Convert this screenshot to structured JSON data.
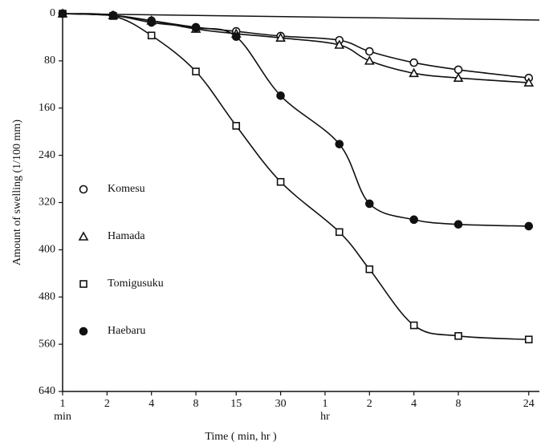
{
  "chart_data": {
    "type": "line",
    "x_label": "Time ( min, hr )",
    "y_label": "Amount of swelling (1/100 mm)",
    "annotations": [
      "min",
      "hr"
    ],
    "x": [
      1,
      2.2,
      4,
      8,
      15,
      30,
      75,
      120,
      240,
      480,
      1440
    ],
    "xlim": [
      1,
      1700
    ],
    "xlog": true,
    "xticks": [
      1,
      2,
      4,
      8,
      15,
      30,
      {
        "value": 60,
        "label": "1"
      },
      {
        "value": 120,
        "label": "2"
      },
      {
        "value": 240,
        "label": "4"
      },
      {
        "value": 480,
        "label": "8"
      },
      {
        "value": 1440,
        "label": "24"
      }
    ],
    "ylim": [
      0,
      640
    ],
    "y_inverted": true,
    "yticks": [
      0,
      80,
      160,
      240,
      320,
      400,
      480,
      560,
      640
    ],
    "legend": "inside-left",
    "series": [
      {
        "name": "Komesu",
        "color": "#111111",
        "marker": "circle-open",
        "values": [
          0,
          3,
          12,
          23,
          30,
          38,
          45,
          64,
          83,
          95,
          109
        ]
      },
      {
        "name": "Hamada",
        "color": "#111111",
        "marker": "triangle-open",
        "values": [
          0,
          3,
          12,
          26,
          34,
          41,
          53,
          80,
          101,
          109,
          117
        ]
      },
      {
        "name": "Tomigusuku",
        "color": "#111111",
        "marker": "square-open",
        "values": [
          0,
          4,
          37,
          98,
          190,
          285,
          370,
          433,
          528,
          546,
          552
        ]
      },
      {
        "name": "Haebaru",
        "color": "#111111",
        "marker": "circle-filled",
        "values": [
          0,
          3,
          15,
          24,
          39,
          139,
          221,
          322,
          349,
          357,
          360
        ]
      }
    ]
  }
}
